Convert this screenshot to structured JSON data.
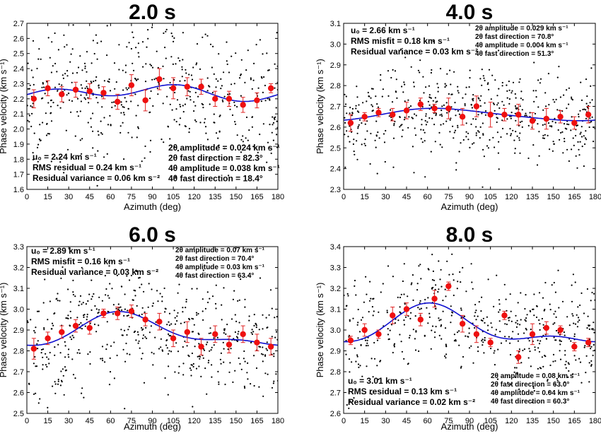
{
  "chart_data": [
    {
      "type": "scatter",
      "title": "2.0 s",
      "xlabel": "Azimuth (deg)",
      "ylabel": "Phase velocity (km s⁻¹)",
      "xlim": [
        0,
        180
      ],
      "ylim": [
        1.6,
        2.7
      ],
      "xticks": [
        0,
        15,
        30,
        45,
        60,
        75,
        90,
        105,
        120,
        135,
        150,
        165,
        180
      ],
      "yticks": [
        1.6,
        1.7,
        1.8,
        1.9,
        2.0,
        2.1,
        2.2,
        2.3,
        2.4,
        2.5,
        2.6,
        2.7
      ],
      "grid": false,
      "fit": {
        "u0": 2.24,
        "a2": 0.024,
        "phi2": 82.3,
        "a4": 0.038,
        "phi4": 18.4
      },
      "series": [
        {
          "name": "binned mean",
          "x": [
            5,
            15,
            25,
            35,
            45,
            55,
            65,
            75,
            85,
            95,
            105,
            115,
            125,
            135,
            145,
            155,
            165,
            175
          ],
          "y": [
            2.2,
            2.27,
            2.23,
            2.26,
            2.25,
            2.24,
            2.18,
            2.29,
            2.19,
            2.33,
            2.27,
            2.28,
            2.28,
            2.2,
            2.2,
            2.16,
            2.19,
            2.27
          ],
          "err": [
            0.06,
            0.05,
            0.05,
            0.05,
            0.05,
            0.04,
            0.05,
            0.07,
            0.07,
            0.07,
            0.07,
            0.06,
            0.05,
            0.05,
            0.05,
            0.05,
            0.05,
            0.03
          ]
        }
      ],
      "scatter_spread": 0.22,
      "annotations": {
        "left": [
          "u₀ = 2.24 km s⁻¹",
          "RMS residual = 0.24 km s⁻¹",
          "Residual variance = 0.06 km s⁻²"
        ],
        "right": [
          "2θ amplitude = 0.024 km s⁻¹",
          "2θ fast direction = 82.3°",
          "4θ amplitude = 0.038 km s⁻¹",
          "4θ fast direction = 18.4°"
        ]
      }
    },
    {
      "type": "scatter",
      "title": "4.0 s",
      "xlabel": "Azimuth (deg)",
      "ylabel": "Phase velocity (km s⁻¹)",
      "xlim": [
        0,
        180
      ],
      "ylim": [
        2.3,
        3.1
      ],
      "xticks": [
        0,
        15,
        30,
        45,
        60,
        75,
        90,
        105,
        120,
        135,
        150,
        165,
        180
      ],
      "yticks": [
        2.3,
        2.4,
        2.5,
        2.6,
        2.7,
        2.8,
        2.9,
        3.0,
        3.1
      ],
      "grid": false,
      "fit": {
        "u0": 2.66,
        "a2": 0.029,
        "phi2": 70.8,
        "a4": 0.004,
        "phi4": 51.3
      },
      "series": [
        {
          "name": "binned mean",
          "x": [
            5,
            15,
            25,
            35,
            45,
            55,
            65,
            75,
            85,
            95,
            105,
            115,
            125,
            135,
            145,
            155,
            165,
            175
          ],
          "y": [
            2.62,
            2.65,
            2.67,
            2.66,
            2.68,
            2.71,
            2.69,
            2.69,
            2.65,
            2.7,
            2.66,
            2.66,
            2.66,
            2.63,
            2.64,
            2.65,
            2.62,
            2.66
          ],
          "err": [
            0.04,
            0.02,
            0.02,
            0.03,
            0.04,
            0.03,
            0.02,
            0.05,
            0.04,
            0.05,
            0.06,
            0.03,
            0.05,
            0.04,
            0.05,
            0.03,
            0.03,
            0.04
          ]
        }
      ],
      "scatter_spread": 0.12,
      "annotations": {
        "left": [
          "u₀ = 2.66 km s⁻¹",
          "RMS misfit = 0.18 km s⁻¹",
          "Residual variance = 0.03 km s⁻²"
        ],
        "right": [
          "2θ amplitude = 0.029 km s⁻¹",
          "2θ fast direction = 70.8°",
          "4θ amplitude = 0.004 km s⁻¹",
          "4θ fast direction = 51.3°"
        ]
      }
    },
    {
      "type": "scatter",
      "title": "6.0 s",
      "xlabel": "Azimuth (deg)",
      "ylabel": "Phase velocity (km s⁻¹)",
      "xlim": [
        0,
        180
      ],
      "ylim": [
        2.5,
        3.3
      ],
      "xticks": [
        0,
        15,
        30,
        45,
        60,
        75,
        90,
        105,
        120,
        135,
        150,
        165,
        180
      ],
      "yticks": [
        2.5,
        2.6,
        2.7,
        2.8,
        2.9,
        3.0,
        3.1,
        3.2,
        3.3
      ],
      "grid": false,
      "fit": {
        "u0": 2.89,
        "a2": 0.07,
        "phi2": 70.4,
        "a4": 0.03,
        "phi4": 63.4
      },
      "series": [
        {
          "name": "binned mean",
          "x": [
            5,
            15,
            25,
            35,
            45,
            55,
            65,
            75,
            85,
            95,
            105,
            115,
            125,
            135,
            145,
            155,
            165,
            175
          ],
          "y": [
            2.81,
            2.86,
            2.89,
            2.92,
            2.91,
            2.98,
            2.98,
            2.99,
            2.95,
            2.94,
            2.86,
            2.89,
            2.82,
            2.88,
            2.83,
            2.88,
            2.84,
            2.82
          ],
          "err": [
            0.05,
            0.03,
            0.03,
            0.03,
            0.03,
            0.02,
            0.03,
            0.03,
            0.03,
            0.04,
            0.04,
            0.05,
            0.04,
            0.04,
            0.04,
            0.04,
            0.04,
            0.04
          ]
        }
      ],
      "scatter_spread": 0.14,
      "annotations": {
        "left": [
          "u₀ = 2.89 km s⁻¹",
          "RMS misfit = 0.16 km s⁻¹",
          "Residual variance = 0.03 km s⁻²"
        ],
        "right": [
          "2θ amplitude = 0.07 km s⁻¹",
          "2θ fast direction = 70.4°",
          "4θ amplitude = 0.03 km s⁻¹",
          "4θ fast direction = 63.4°"
        ]
      }
    },
    {
      "type": "scatter",
      "title": "8.0 s",
      "xlabel": "Azimuth (deg)",
      "ylabel": "Phase velocity (km s⁻¹)",
      "xlim": [
        0,
        180
      ],
      "ylim": [
        2.6,
        3.4
      ],
      "xticks": [
        0,
        15,
        30,
        45,
        60,
        75,
        90,
        105,
        120,
        135,
        150,
        165,
        180
      ],
      "yticks": [
        2.6,
        2.7,
        2.8,
        2.9,
        3.0,
        3.1,
        3.2,
        3.3,
        3.4
      ],
      "grid": false,
      "fit": {
        "u0": 3.01,
        "a2": 0.08,
        "phi2": 63.0,
        "a4": 0.04,
        "phi4": 60.3
      },
      "series": [
        {
          "name": "binned mean",
          "x": [
            5,
            15,
            25,
            35,
            45,
            55,
            65,
            75,
            85,
            95,
            105,
            115,
            125,
            135,
            145,
            155,
            165,
            175
          ],
          "y": [
            2.95,
            3.0,
            2.98,
            3.07,
            3.1,
            3.05,
            3.15,
            3.21,
            3.03,
            2.98,
            2.94,
            3.07,
            2.87,
            2.98,
            3.01,
            3.0,
            2.92,
            2.94
          ],
          "err": [
            0.02,
            0.03,
            0.02,
            0.04,
            0.03,
            0.03,
            0.04,
            0.02,
            0.04,
            0.04,
            0.02,
            0.02,
            0.03,
            0.05,
            0.03,
            0.02,
            0.02,
            0.02
          ]
        }
      ],
      "scatter_spread": 0.13,
      "annotations": {
        "left": [
          "u₀ = 3.01 km s⁻¹",
          "RMS residual = 0.13 km s⁻¹",
          "Residual variance = 0.02 km s⁻²"
        ],
        "right": [
          "2θ amplitude = 0.08 km s⁻¹",
          "2θ fast direction = 63.0°",
          "4θ amplitude = 0.04 km s⁻¹",
          "4θ fast direction = 60.3°"
        ]
      }
    }
  ],
  "colors": {
    "mean": "#ee1010",
    "errorbar": "#e02020",
    "fit": "#1010d0",
    "scatter": "#000000"
  }
}
